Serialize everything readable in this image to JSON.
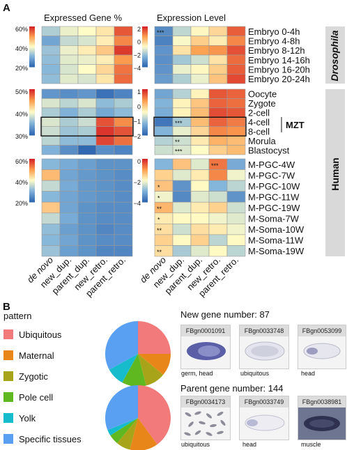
{
  "panel_a": {
    "label": "A",
    "col_title_left": "Expressed Gene %",
    "col_title_right": "Expression Level",
    "columns": [
      "de novo",
      "new_dup.",
      "parent_dup.",
      "new_retro.",
      "parent_retro."
    ],
    "species_labels": [
      "Drosophila",
      "Human"
    ],
    "mzt_label": "MZT"
  },
  "panel_b": {
    "label": "B",
    "legend_title": "pattern",
    "new_gene_title": "New gene number: 87",
    "parent_gene_title": "Parent gene number: 144",
    "new_photos": [
      {
        "id": "FBgn0001091",
        "caption": "germ, head"
      },
      {
        "id": "FBgn0033748",
        "caption": "ubiquitous"
      },
      {
        "id": "FBgn0053099",
        "caption": "head"
      }
    ],
    "parent_photos": [
      {
        "id": "FBgn0034173",
        "caption": "ubiquitous"
      },
      {
        "id": "FBgn0033749",
        "caption": "head"
      },
      {
        "id": "FBgn0038981",
        "caption": "muscle"
      }
    ]
  },
  "chart_data": [
    {
      "type": "heatmap",
      "name": "drosophila-expressed-gene-pct",
      "rows": [
        "Embryo 0-4h",
        "Embryo 4-8h",
        "Embryo 8-12h",
        "Embryo 14-16h",
        "Embryo 16-20h",
        "Embryo 20-24h"
      ],
      "columns": [
        "de novo",
        "new_dup.",
        "parent_dup.",
        "new_retro.",
        "parent_retro."
      ],
      "scale": {
        "ticks": [
          "60%",
          "40%",
          "20%"
        ],
        "min": 10,
        "max": 60
      },
      "values": [
        [
          27,
          33,
          35,
          38,
          55
        ],
        [
          20,
          29,
          31,
          37,
          50
        ],
        [
          25,
          33,
          37,
          42,
          58
        ],
        [
          24,
          32,
          33,
          37,
          48
        ],
        [
          23,
          31,
          35,
          40,
          52
        ],
        [
          24,
          32,
          31,
          38,
          53
        ]
      ]
    },
    {
      "type": "heatmap",
      "name": "drosophila-expression-level",
      "rows": [
        "Embryo 0-4h",
        "Embryo 4-8h",
        "Embryo 8-12h",
        "Embryo 14-16h",
        "Embryo 16-20h",
        "Embryo 20-24h"
      ],
      "columns": [
        "de novo",
        "new_dup.",
        "parent_dup.",
        "new_retro.",
        "parent_retro."
      ],
      "scale": {
        "ticks": [
          "2",
          "0",
          "−2",
          "−4"
        ],
        "min": -5,
        "max": 2
      },
      "values": [
        [
          -4.2,
          -2.4,
          -1.4,
          -0.8,
          1.2
        ],
        [
          -4.4,
          -1.6,
          -0.6,
          -1.2,
          0.6
        ],
        [
          -4.0,
          -1.0,
          0.2,
          0.4,
          1.4
        ],
        [
          -4.1,
          -2.8,
          -2.2,
          -1.0,
          1.0
        ],
        [
          -4.0,
          -1.8,
          -1.4,
          -0.6,
          1.2
        ],
        [
          -3.8,
          -2.6,
          -1.8,
          -0.4,
          1.5
        ]
      ],
      "stars": [
        [
          "***",
          "",
          "",
          "",
          ""
        ],
        [
          "",
          "",
          "",
          "",
          ""
        ],
        [
          "",
          "",
          "",
          "",
          ""
        ],
        [
          "",
          "",
          "",
          "",
          ""
        ],
        [
          "",
          "",
          "",
          "",
          ""
        ],
        [
          "",
          "",
          "",
          "",
          ""
        ]
      ]
    },
    {
      "type": "heatmap",
      "name": "human-early-expressed-gene-pct",
      "rows": [
        "Oocyte",
        "Zygote",
        "2-cell",
        "4-cell",
        "8-cell",
        "Morula",
        "Blastocyst"
      ],
      "columns": [
        "de novo",
        "new_dup.",
        "parent_dup.",
        "new_retro.",
        "parent_retro."
      ],
      "scale": {
        "ticks": [
          "50%",
          "40%",
          "30%"
        ],
        "min": 22,
        "max": 55
      },
      "values": [
        [
          27,
          26,
          27,
          23,
          25
        ],
        [
          36,
          34,
          36,
          31,
          33
        ],
        [
          33,
          30,
          33,
          29,
          31
        ],
        [
          36,
          33,
          35,
          52,
          48
        ],
        [
          35,
          32,
          33,
          54,
          52
        ],
        [
          34,
          31,
          31,
          53,
          50
        ],
        [
          30,
          26,
          22,
          26,
          25
        ]
      ]
    },
    {
      "type": "heatmap",
      "name": "human-early-expression-level",
      "rows": [
        "Oocyte",
        "Zygote",
        "2-cell",
        "4-cell",
        "8-cell",
        "Morula",
        "Blastocyst"
      ],
      "columns": [
        "de novo",
        "new_dup.",
        "parent_dup.",
        "new_retro.",
        "parent_retro."
      ],
      "scale": {
        "ticks": [
          "1",
          "0",
          "−1",
          "−2"
        ],
        "min": -3,
        "max": 1
      },
      "values": [
        [
          -2.2,
          -1.6,
          -0.9,
          0.6,
          0.5
        ],
        [
          -2.0,
          -0.9,
          -0.4,
          0.5,
          0.4
        ],
        [
          -2.1,
          -0.9,
          -0.3,
          0.7,
          0.6
        ],
        [
          -2.8,
          -1.7,
          -0.3,
          0.5,
          0.3
        ],
        [
          -2.0,
          -1.2,
          -0.6,
          0.2,
          0.1
        ],
        [
          -1.6,
          -1.4,
          -0.8,
          -0.2,
          -0.3
        ],
        [
          -1.4,
          -1.3,
          -1.0,
          -0.5,
          -0.3
        ]
      ],
      "stars": [
        [
          "",
          "",
          "",
          "",
          ""
        ],
        [
          "",
          "",
          "",
          "",
          ""
        ],
        [
          "",
          "",
          "",
          "",
          ""
        ],
        [
          "",
          "***",
          "",
          "",
          ""
        ],
        [
          "",
          "",
          "",
          "",
          ""
        ],
        [
          "",
          "**",
          "",
          "",
          ""
        ],
        [
          "",
          "***",
          "",
          "",
          ""
        ]
      ]
    },
    {
      "type": "heatmap",
      "name": "human-pgc-expressed-gene-pct",
      "rows": [
        "M-PGC-4W",
        "M-PGC-7W",
        "M-PGC-10W",
        "M-PGC-11W",
        "M-PGC-19W",
        "M-Soma-7W",
        "M-Soma-10W",
        "M-Soma-11W",
        "M-Soma-19W"
      ],
      "columns": [
        "de novo",
        "new_dup.",
        "parent_dup.",
        "new_retro.",
        "parent_retro."
      ],
      "scale": {
        "ticks": [
          "60%",
          "40%",
          "20%"
        ],
        "min": 10,
        "max": 60
      },
      "values": [
        [
          23,
          21,
          19,
          17,
          17
        ],
        [
          44,
          20,
          18,
          17,
          16
        ],
        [
          29,
          21,
          18,
          17,
          16
        ],
        [
          23,
          20,
          18,
          17,
          16
        ],
        [
          42,
          20,
          17,
          16,
          16
        ],
        [
          29,
          21,
          17,
          16,
          16
        ],
        [
          24,
          19,
          17,
          15,
          16
        ],
        [
          23,
          20,
          17,
          16,
          16
        ],
        [
          25,
          19,
          17,
          15,
          15
        ]
      ]
    },
    {
      "type": "heatmap",
      "name": "human-pgc-expression-level",
      "rows": [
        "M-PGC-4W",
        "M-PGC-7W",
        "M-PGC-10W",
        "M-PGC-11W",
        "M-PGC-19W",
        "M-Soma-7W",
        "M-Soma-10W",
        "M-Soma-11W",
        "M-Soma-19W"
      ],
      "columns": [
        "de novo",
        "new_dup.",
        "parent_dup.",
        "new_retro.",
        "parent_retro."
      ],
      "scale": {
        "ticks": [
          "0",
          "−2",
          "−4"
        ],
        "min": -5,
        "max": 0.5
      },
      "values": [
        [
          -3.6,
          -1.4,
          -2.6,
          -0.4,
          -3.8
        ],
        [
          -1.6,
          -2.6,
          -2.0,
          -0.6,
          -2.4
        ],
        [
          -1.4,
          -4.2,
          -2.2,
          -3.6,
          -3.0
        ],
        [
          -2.4,
          -4.4,
          -2.6,
          -2.8,
          -4.2
        ],
        [
          -1.2,
          -2.6,
          -2.0,
          -1.6,
          -2.8
        ],
        [
          -2.0,
          -2.2,
          -2.2,
          -2.4,
          -2.6
        ],
        [
          -1.8,
          -2.8,
          -1.8,
          -2.0,
          -2.4
        ],
        [
          -1.6,
          -2.2,
          -1.6,
          -3.0,
          -2.2
        ],
        [
          -1.8,
          -3.2,
          -2.6,
          -2.2,
          -3.0
        ]
      ],
      "stars": [
        [
          "",
          "",
          "",
          "***",
          ""
        ],
        [
          "",
          "",
          "",
          "",
          ""
        ],
        [
          "*",
          "",
          "",
          "",
          ""
        ],
        [
          "*",
          "",
          "",
          "",
          ""
        ],
        [
          "**",
          "",
          "",
          "",
          ""
        ],
        [
          "*",
          "",
          "",
          "",
          ""
        ],
        [
          "**",
          "",
          "",
          "",
          ""
        ],
        [
          "",
          "",
          "",
          "",
          ""
        ],
        [
          "**",
          "",
          "",
          "",
          ""
        ]
      ]
    },
    {
      "type": "pie",
      "name": "new-gene-patterns",
      "categories": [
        "Ubiquitous",
        "Maternal",
        "Zygotic",
        "Pole cell",
        "Yolk",
        "Specific tissues"
      ],
      "values": [
        25,
        11,
        10,
        12,
        9,
        33
      ],
      "colors": [
        "#f27a7a",
        "#e8861a",
        "#a7a41a",
        "#5fb81f",
        "#17bccc",
        "#5aa0f2"
      ]
    },
    {
      "type": "pie",
      "name": "parent-gene-patterns",
      "categories": [
        "Ubiquitous",
        "Maternal",
        "Zygotic",
        "Pole cell",
        "Yolk",
        "Specific tissues"
      ],
      "values": [
        40,
        14,
        7,
        5,
        3,
        31
      ],
      "colors": [
        "#f27a7a",
        "#e8861a",
        "#a7a41a",
        "#5fb81f",
        "#17bccc",
        "#5aa0f2"
      ]
    }
  ]
}
